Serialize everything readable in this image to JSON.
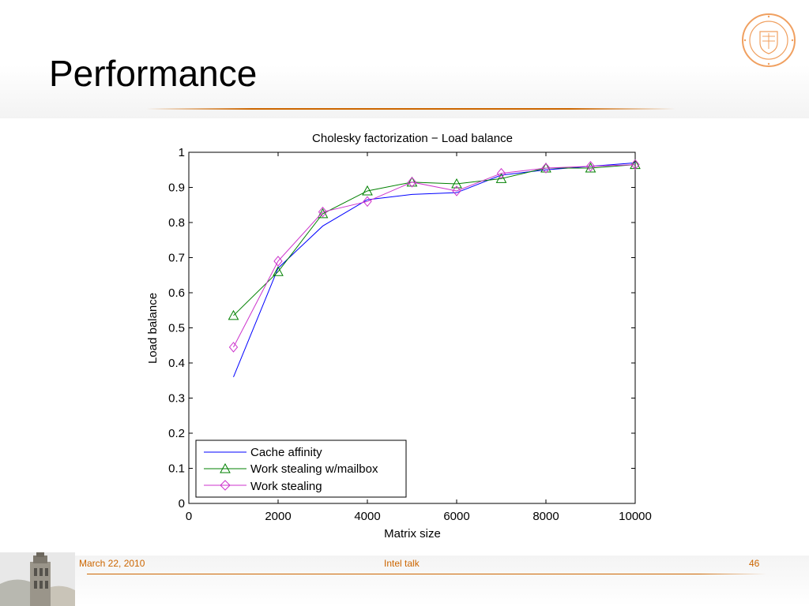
{
  "slide": {
    "title": "Performance"
  },
  "footer": {
    "date": "March 22, 2010",
    "center": "Intel talk",
    "page_number": "46"
  },
  "colors": {
    "accent": "#cc6600",
    "seal": "#f0a060"
  },
  "chart_data": {
    "type": "line",
    "title": "Cholesky factorization − Load balance",
    "xlabel": "Matrix size",
    "ylabel": "Load balance",
    "xlim": [
      0,
      10000
    ],
    "ylim": [
      0,
      1
    ],
    "x_ticks": [
      0,
      2000,
      4000,
      6000,
      8000,
      10000
    ],
    "y_ticks": [
      0,
      0.1,
      0.2,
      0.3,
      0.4,
      0.5,
      0.6,
      0.7,
      0.8,
      0.9,
      1
    ],
    "y_tick_labels": [
      "0",
      "0.1",
      "0.2",
      "0.3",
      "0.4",
      "0.5",
      "0.6",
      "0.7",
      "0.8",
      "0.9",
      "1"
    ],
    "grid": false,
    "legend_position": "bottom-left",
    "series": [
      {
        "name": "Cache affinity",
        "color": "#0000ff",
        "marker": "none",
        "x": [
          1000,
          2000,
          3000,
          4000,
          5000,
          6000,
          7000,
          8000,
          9000,
          10000
        ],
        "values": [
          0.36,
          0.67,
          0.79,
          0.865,
          0.88,
          0.885,
          0.935,
          0.95,
          0.96,
          0.97
        ]
      },
      {
        "name": "Work stealing w/mailbox",
        "color": "#008000",
        "marker": "triangle",
        "x": [
          1000,
          2000,
          3000,
          4000,
          5000,
          6000,
          7000,
          8000,
          9000,
          10000
        ],
        "values": [
          0.535,
          0.66,
          0.825,
          0.89,
          0.915,
          0.91,
          0.925,
          0.955,
          0.955,
          0.965
        ]
      },
      {
        "name": "Work stealing",
        "color": "#cc33cc",
        "marker": "diamond",
        "x": [
          1000,
          2000,
          3000,
          4000,
          5000,
          6000,
          7000,
          8000,
          9000,
          10000
        ],
        "values": [
          0.445,
          0.69,
          0.83,
          0.86,
          0.915,
          0.89,
          0.94,
          0.955,
          0.96,
          0.965
        ]
      }
    ]
  }
}
